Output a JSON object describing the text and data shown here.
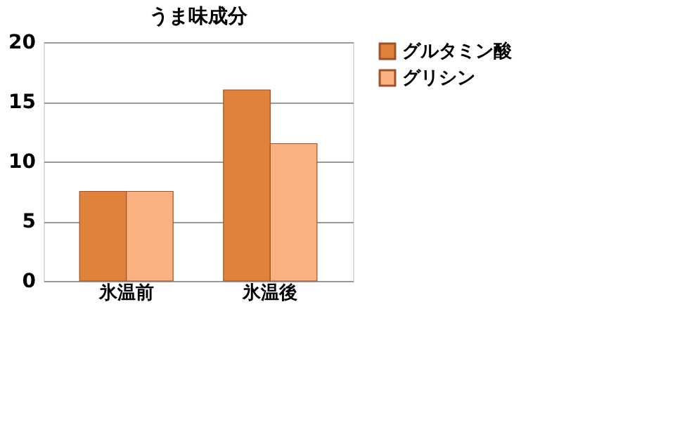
{
  "chart_data": {
    "type": "bar",
    "title": "うま味成分",
    "categories": [
      "氷温前",
      "氷温後"
    ],
    "series": [
      {
        "name": "グルタミン酸",
        "color": "#e0823a",
        "values": [
          7.5,
          16
        ]
      },
      {
        "name": "グリシン",
        "color": "#fbb07f",
        "values": [
          7.5,
          11.5
        ]
      }
    ],
    "ylim": [
      0,
      20
    ],
    "yticks": [
      0,
      5,
      10,
      15,
      20
    ],
    "grid": "y",
    "legend": "right"
  }
}
